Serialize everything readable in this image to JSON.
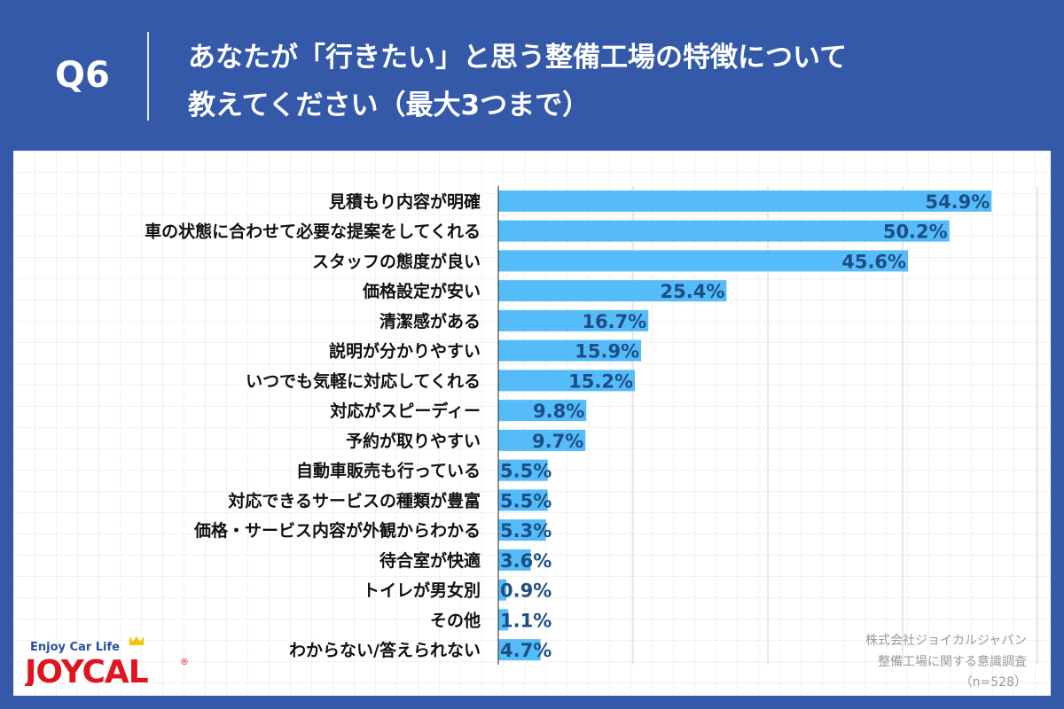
{
  "header": {
    "question": "Q6",
    "title_line1": "あなたが「行きたい」と思う整備工場の特徴について",
    "title_line2": "教えてください（最大3つまで）"
  },
  "footnote": {
    "company": "株式会社ジョイカルジャパン",
    "survey": "整備工場に関する意識調査",
    "sample": "（n=528）"
  },
  "logo": {
    "tagline": "Enjoy Car Life",
    "brand": "JOYCAL"
  },
  "colors": {
    "bar": "#55bcf9",
    "value_text": "#1d4f86",
    "background": "#3359a8",
    "logo_red": "#e0141e"
  },
  "chart_data": {
    "type": "bar",
    "orientation": "horizontal",
    "xlim": [
      0,
      60
    ],
    "gridlines": [
      15,
      30,
      45,
      60
    ],
    "unit": "%",
    "categories": [
      "見積もり内容が明確",
      "車の状態に合わせて必要な提案をしてくれる",
      "スタッフの態度が良い",
      "価格設定が安い",
      "清潔感がある",
      "説明が分かりやすい",
      "いつでも気軽に対応してくれる",
      "対応がスピーディー",
      "予約が取りやすい",
      "自動車販売も行っている",
      "対応できるサービスの種類が豊富",
      "価格・サービス内容が外観からわかる",
      "待合室が快適",
      "トイレが男女別",
      "その他",
      "わからない/答えられない"
    ],
    "values": [
      54.9,
      50.2,
      45.6,
      25.4,
      16.7,
      15.9,
      15.2,
      9.8,
      9.7,
      5.5,
      5.5,
      5.3,
      3.6,
      0.9,
      1.1,
      4.7
    ],
    "labels": [
      "54.9%",
      "50.2%",
      "45.6%",
      "25.4%",
      "16.7%",
      "15.9%",
      "15.2%",
      "9.8%",
      "9.7%",
      "5.5%",
      "5.5%",
      "5.3%",
      "3.6%",
      "0.9%",
      "1.1%",
      "4.7%"
    ]
  }
}
